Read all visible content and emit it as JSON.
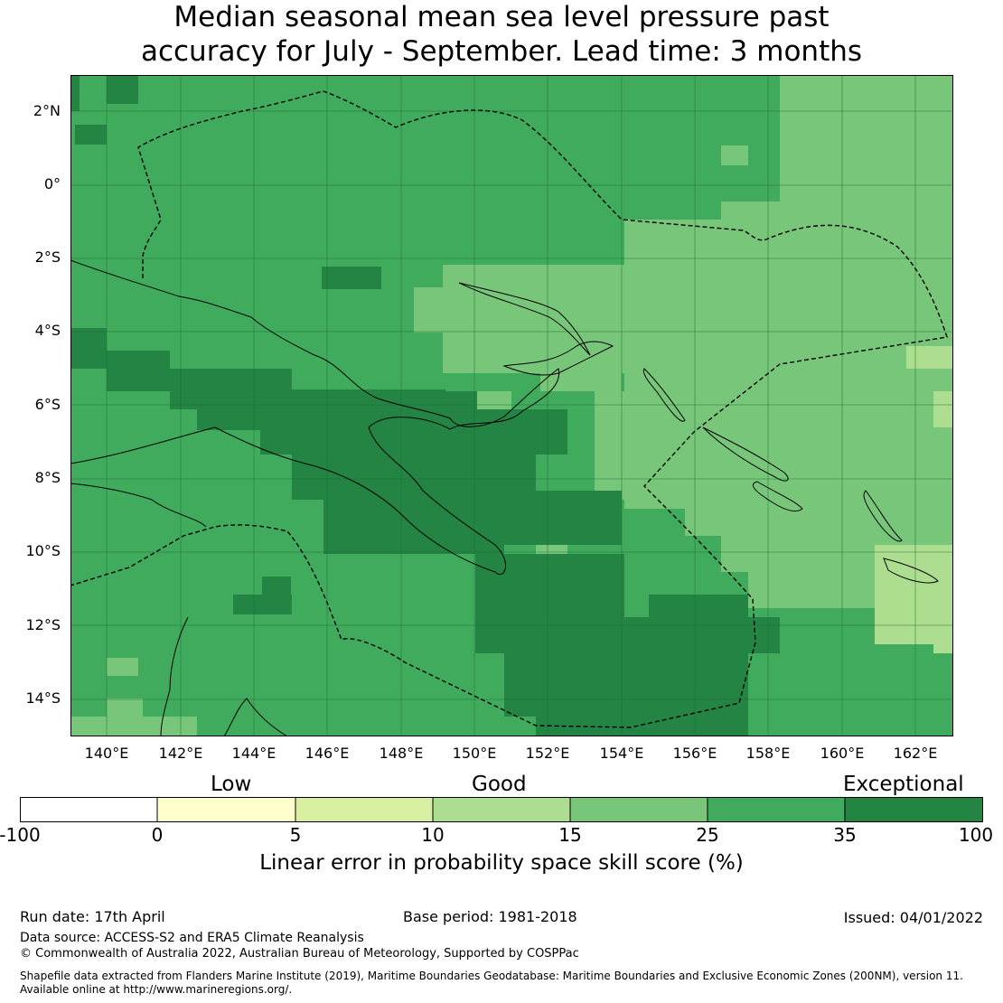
{
  "title": {
    "line1": "Median seasonal mean sea level pressure past",
    "line2": "accuracy for July - September. Lead time: 3 months"
  },
  "map": {
    "lat_labels": [
      "2°N",
      "0°",
      "2°S",
      "4°S",
      "6°S",
      "8°S",
      "10°S",
      "12°S",
      "14°S"
    ],
    "lon_labels": [
      "140°E",
      "142°E",
      "144°E",
      "146°E",
      "148°E",
      "150°E",
      "152°E",
      "154°E",
      "156°E",
      "158°E",
      "160°E",
      "162°E"
    ],
    "colors": {
      "exceptional": "#238443",
      "c25_35": "#41ab5d",
      "c15_25": "#78c679",
      "c10_15": "#addd8e",
      "c5_10": "#d9f0a3",
      "c0_5": "#ffffcc"
    }
  },
  "legend": {
    "categories": [
      "Low",
      "Good",
      "Exceptional"
    ],
    "ticks": [
      "-100",
      "0",
      "5",
      "10",
      "15",
      "25",
      "35",
      "100"
    ],
    "colors": [
      "#ffffff",
      "#ffffcc",
      "#d9f0a3",
      "#addd8e",
      "#78c679",
      "#41ab5d",
      "#238443"
    ],
    "title": "Linear error in probability space skill score (%)"
  },
  "footer": {
    "run_date": "Run date: 17th April",
    "base_period": "Base period: 1981-2018",
    "issued": "Issued: 04/01/2022",
    "data_source": "Data source: ACCESS-S2 and ERA5 Climate Reanalysis",
    "copyright": "© Commonwealth of Australia 2022, Australian Bureau of Meteorology, Supported by COSPPac",
    "shapefile_line1": "Shapefile data extracted from Flanders Marine Institute (2019), Maritime Boundaries Geodatabase: Maritime Boundaries and Exclusive Economic Zones (200NM), version 11.",
    "shapefile_line2": "Available online at http://www.marineregions.org/."
  }
}
